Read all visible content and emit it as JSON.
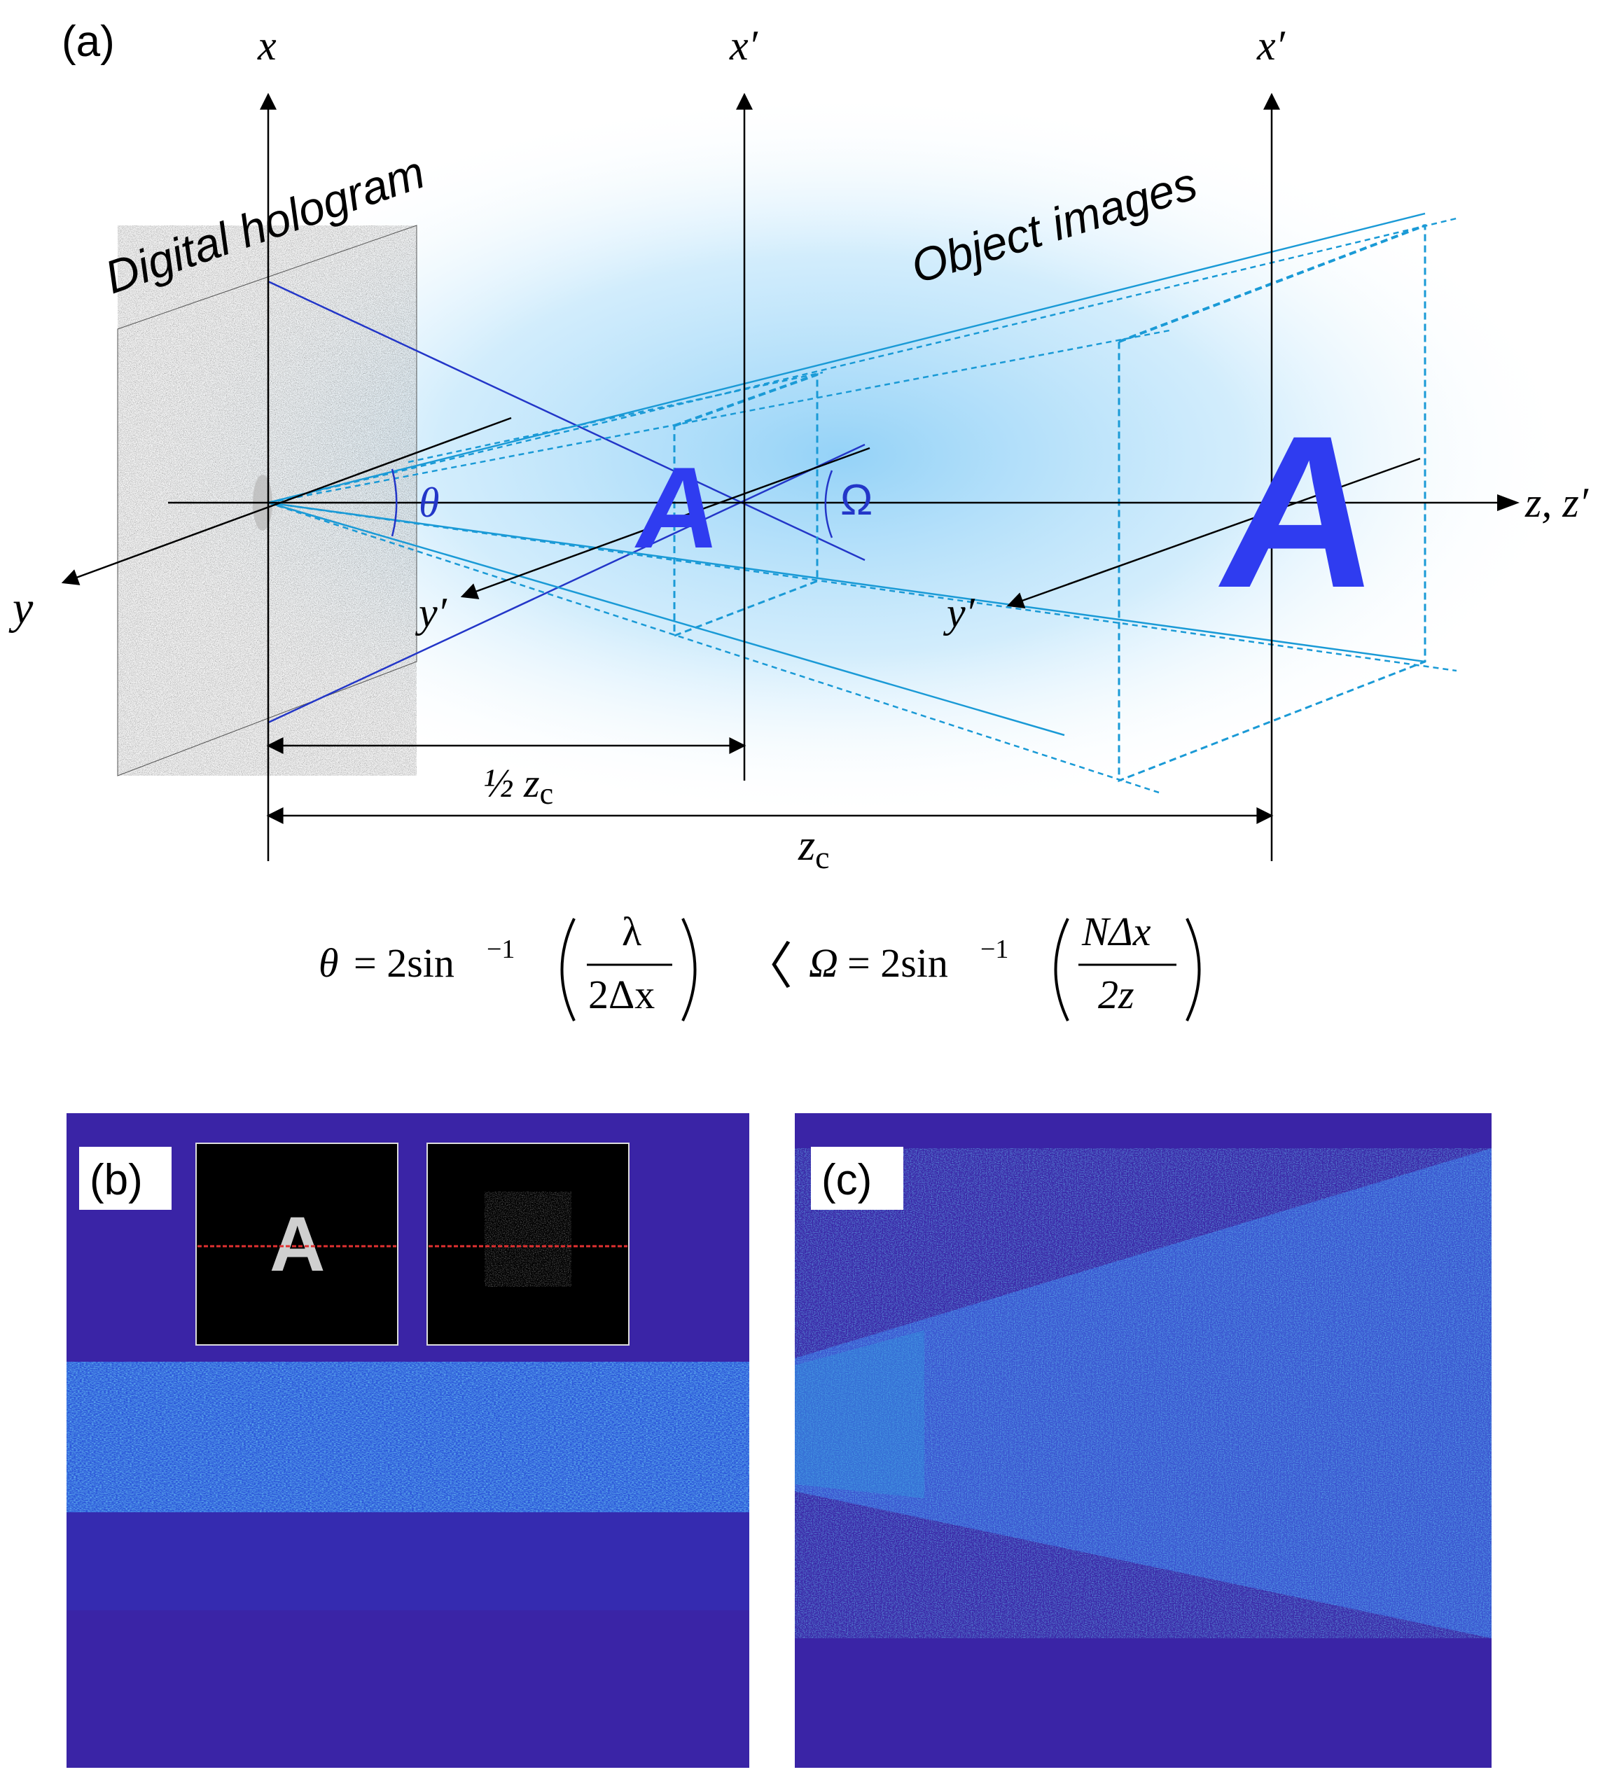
{
  "panel_a": {
    "label": "(a)",
    "hologram_label": "Digital hologram",
    "object_label": "Object images",
    "axes": {
      "x": "x",
      "x_prime": "x′",
      "x_prime_2": "x′",
      "y": "y",
      "y_prime": "y′",
      "y_prime_2": "y′",
      "z": "z, z′"
    },
    "angle_theta": "θ",
    "angle_omega": "Ω",
    "object_letter": "A",
    "object_letter_2": "A",
    "dim_half": "½ z",
    "dim_half_sub": "c",
    "dim_full": "z",
    "dim_full_sub": "c",
    "formula": {
      "theta_lhs": "θ",
      "eq1": "= 2sin",
      "sup1": "−1",
      "num1": "λ",
      "den1": "2Δx",
      "less": "〈",
      "omega_lhs": "Ω",
      "eq2": "= 2sin",
      "sup2": "−1",
      "num2": "NΔx",
      "den2": "2z"
    }
  },
  "panel_b": {
    "label": "(b)",
    "inset_letter": "A"
  },
  "panel_c": {
    "label": "(c)"
  },
  "colors": {
    "axis": "#000000",
    "ray_dark": "#2336c8",
    "ray_light": "#1a9ad6",
    "letter": "#2f3cf0",
    "map_bg": "#3a24a6",
    "glow": "#7cc4f4"
  }
}
